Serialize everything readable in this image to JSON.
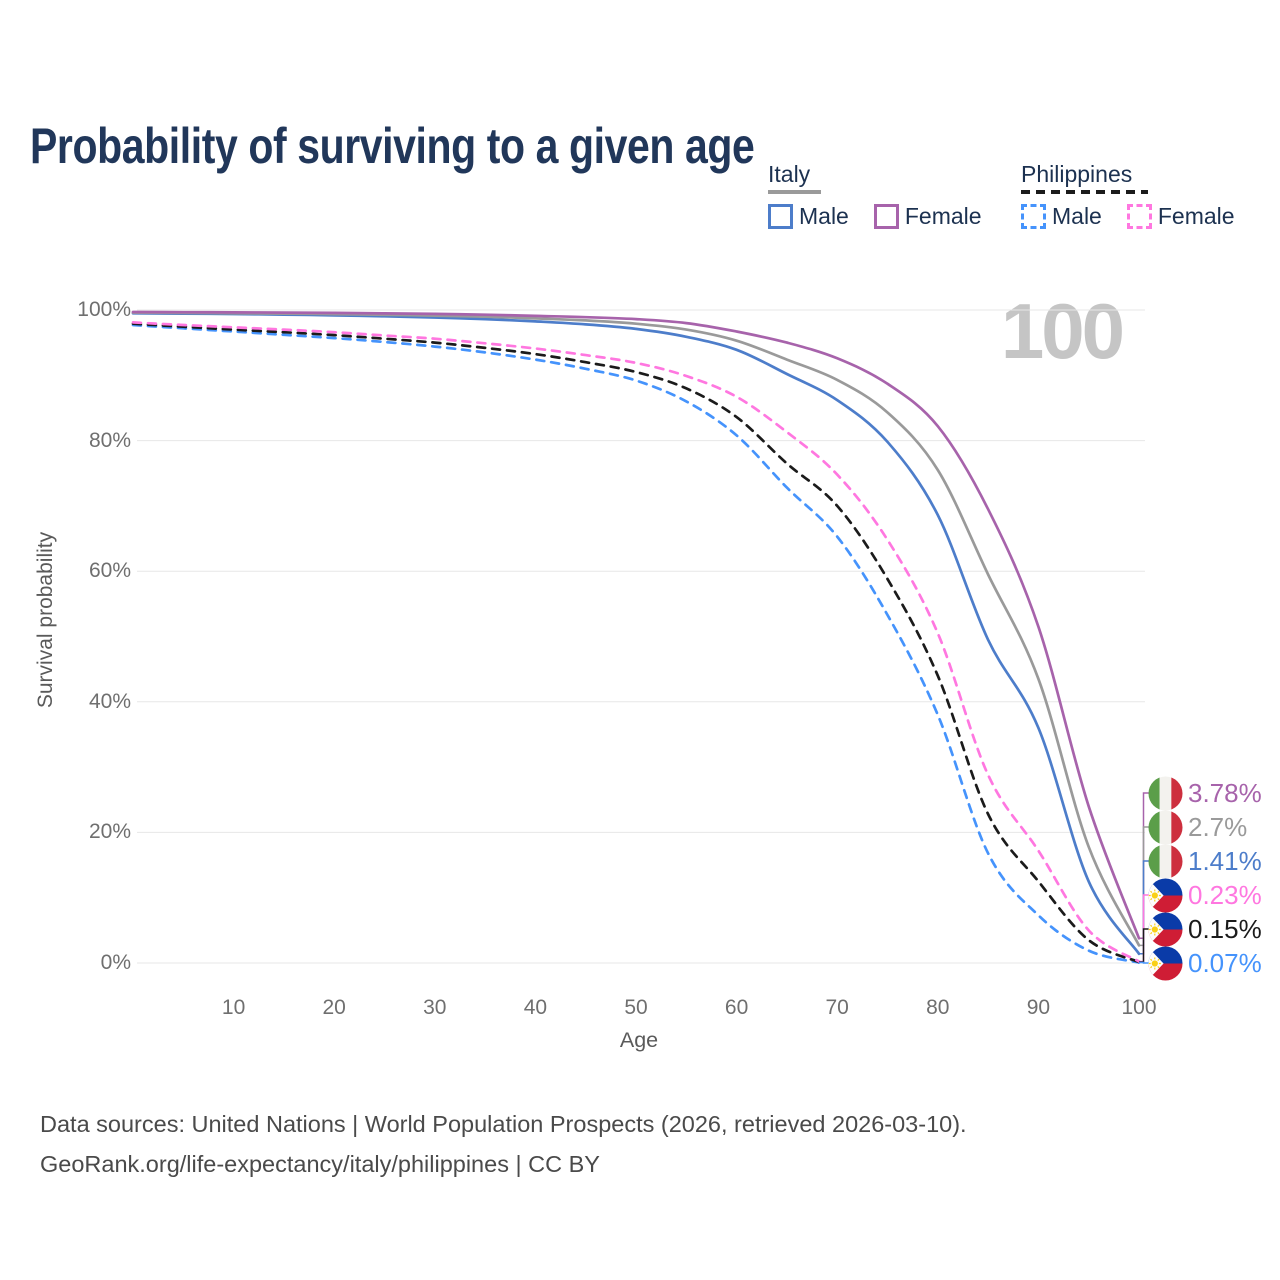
{
  "title": "Probability of surviving to a given age",
  "watermark_age": "100",
  "legend": {
    "groups": [
      {
        "label": "Italy",
        "line_style": "solid",
        "group_color": "#9a9a9a",
        "items": [
          {
            "label": "Male",
            "color": "#4d7dca",
            "dashed": false
          },
          {
            "label": "Female",
            "color": "#a763ab",
            "dashed": false
          }
        ]
      },
      {
        "label": "Philippines",
        "line_style": "dashed",
        "group_color": "#1b1b1b",
        "items": [
          {
            "label": "Male",
            "color": "#4593fc",
            "dashed": true
          },
          {
            "label": "Female",
            "color": "#ff77e0",
            "dashed": true
          }
        ]
      }
    ]
  },
  "chart_data": {
    "type": "line",
    "title": "Probability of surviving to a given age",
    "xlabel": "Age",
    "ylabel": "Survival probability",
    "xlim": [
      0,
      100
    ],
    "ylim": [
      0,
      100
    ],
    "grid": "horizontal",
    "legend_position": "top-right",
    "x_tick_values": [
      10,
      20,
      30,
      40,
      50,
      60,
      70,
      80,
      90,
      100
    ],
    "x_tick_labels": [
      "10",
      "20",
      "30",
      "40",
      "50",
      "60",
      "70",
      "80",
      "90",
      "100"
    ],
    "y_tick_values": [
      0,
      20,
      40,
      60,
      80,
      100
    ],
    "y_tick_labels": [
      "0%",
      "20%",
      "40%",
      "60%",
      "80%",
      "100%"
    ],
    "x": [
      0,
      5,
      10,
      15,
      20,
      25,
      30,
      35,
      40,
      45,
      50,
      55,
      60,
      65,
      70,
      75,
      80,
      85,
      90,
      95,
      100
    ],
    "series": [
      {
        "name": "Italy Female",
        "country": "Italy",
        "sex": "Female",
        "color": "#a763ab",
        "dashed": false,
        "end_label": "3.78%",
        "values": [
          99.7,
          99.67,
          99.64,
          99.6,
          99.55,
          99.48,
          99.4,
          99.28,
          99.1,
          98.9,
          98.6,
          98.0,
          96.7,
          95.0,
          92.6,
          88.7,
          82.2,
          69.5,
          51.5,
          24.0,
          3.78
        ]
      },
      {
        "name": "Italy Both sexes",
        "country": "Italy",
        "sex": "Both",
        "color": "#9a9a9a",
        "dashed": false,
        "end_label": "2.7%",
        "values": [
          99.6,
          99.56,
          99.5,
          99.45,
          99.37,
          99.27,
          99.14,
          98.97,
          98.72,
          98.4,
          97.9,
          97.0,
          95.3,
          92.4,
          89.3,
          84.3,
          75.5,
          59.5,
          43.5,
          17.8,
          2.7
        ]
      },
      {
        "name": "Italy Male",
        "country": "Italy",
        "sex": "Male",
        "color": "#4d7dca",
        "dashed": false,
        "end_label": "1.41%",
        "values": [
          99.5,
          99.45,
          99.38,
          99.3,
          99.18,
          99.03,
          98.85,
          98.6,
          98.25,
          97.8,
          97.1,
          95.9,
          93.9,
          90.2,
          86.2,
          79.8,
          68.6,
          49.5,
          36.0,
          12.5,
          1.41
        ]
      },
      {
        "name": "Philippines Female",
        "country": "Philippines",
        "sex": "Female",
        "color": "#ff77e0",
        "dashed": true,
        "end_label": "0.23%",
        "values": [
          98.1,
          97.7,
          97.35,
          97.0,
          96.6,
          96.1,
          95.6,
          94.9,
          94.1,
          93.1,
          91.9,
          89.9,
          86.7,
          81.3,
          74.8,
          64.8,
          50.5,
          28.8,
          17.2,
          5.0,
          0.23
        ]
      },
      {
        "name": "Philippines Both sexes",
        "country": "Philippines",
        "sex": "Both",
        "color": "#1b1b1b",
        "dashed": true,
        "end_label": "0.15%",
        "values": [
          97.9,
          97.45,
          97.0,
          96.6,
          96.15,
          95.6,
          95.0,
          94.2,
          93.25,
          92.0,
          90.5,
          88.0,
          83.6,
          76.5,
          70.0,
          58.8,
          44.0,
          22.8,
          12.5,
          3.5,
          0.15
        ]
      },
      {
        "name": "Philippines Male",
        "country": "Philippines",
        "sex": "Male",
        "color": "#4593fc",
        "dashed": true,
        "end_label": "0.07%",
        "values": [
          97.7,
          97.2,
          96.7,
          96.2,
          95.7,
          95.1,
          94.4,
          93.5,
          92.4,
          91.0,
          89.2,
          86.0,
          80.8,
          72.8,
          65.3,
          53.3,
          38.0,
          16.8,
          7.3,
          1.9,
          0.07
        ]
      }
    ]
  },
  "footer": {
    "line1": "Data sources: United Nations | World Population Prospects (2026, retrieved 2026-03-10).",
    "line2": "GeoRank.org/life-expectancy/italy/philippines | CC BY"
  }
}
